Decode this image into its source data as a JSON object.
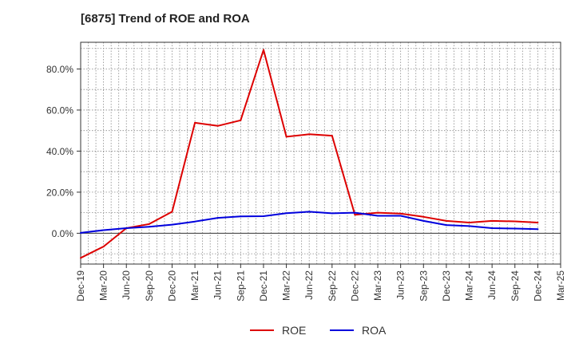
{
  "chart_data": {
    "type": "line",
    "title": "[6875]  Trend of ROE and ROA",
    "xlabel": "",
    "ylabel": "",
    "x_ticks": [
      "Dec-19",
      "Mar-20",
      "Jun-20",
      "Sep-20",
      "Dec-20",
      "Mar-21",
      "Jun-21",
      "Sep-21",
      "Dec-21",
      "Mar-22",
      "Jun-22",
      "Sep-22",
      "Dec-22",
      "Mar-23",
      "Jun-23",
      "Sep-23",
      "Dec-23",
      "Mar-24",
      "Jun-24",
      "Sep-24",
      "Dec-24",
      "Mar-25"
    ],
    "categories": [
      "Dec-19",
      "Mar-20",
      "Jun-20",
      "Sep-20",
      "Dec-20",
      "Mar-21",
      "Jun-21",
      "Sep-21",
      "Dec-21",
      "Mar-22",
      "Jun-22",
      "Sep-22",
      "Dec-22",
      "Mar-23",
      "Jun-23",
      "Sep-23",
      "Dec-23",
      "Mar-24",
      "Jun-24",
      "Sep-24",
      "Dec-24"
    ],
    "y_ticks": [
      0,
      20,
      40,
      60,
      80
    ],
    "y_tick_labels": [
      "0.0%",
      "20.0%",
      "40.0%",
      "60.0%",
      "80.0%"
    ],
    "ylim": [
      -15,
      93
    ],
    "grid": true,
    "legend_position": "bottom-center",
    "series": [
      {
        "name": "ROE",
        "color": "#dd0000",
        "values": [
          -12.0,
          -6.5,
          2.5,
          4.5,
          10.5,
          53.8,
          52.3,
          55.0,
          89.3,
          47.0,
          48.2,
          47.5,
          9.0,
          10.0,
          9.6,
          8.0,
          6.0,
          5.2,
          6.0,
          5.8,
          5.2
        ]
      },
      {
        "name": "ROA",
        "color": "#0000dd",
        "values": [
          0.2,
          1.5,
          2.5,
          3.2,
          4.2,
          5.7,
          7.5,
          8.2,
          8.3,
          9.8,
          10.5,
          9.7,
          10.0,
          8.5,
          8.5,
          6.0,
          4.0,
          3.5,
          2.5,
          2.3,
          2.0
        ]
      }
    ]
  }
}
